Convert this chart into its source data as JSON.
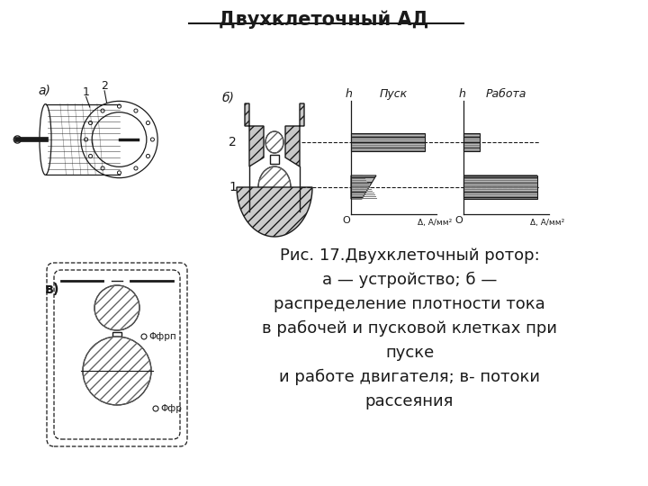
{
  "title": "Двухклеточный АД",
  "caption_line1": "Рис. 17.Двухклеточный ротор:",
  "caption_line2": "а — устройство; б —",
  "caption_line3": "распределение плотности тока",
  "caption_line4": "в рабочей и пусковой клетках при",
  "caption_line5": "пуске",
  "caption_line6": "и работе двигателя; в- потоки",
  "caption_line7": "рассеяния",
  "label_a": "а)",
  "label_b": "б)",
  "label_v": "в)",
  "label_1": "1",
  "label_2": "2",
  "label_pusk": "Пуск",
  "label_rabota": "Работа",
  "label_h": "h",
  "label_delta": "Δ, А/мм²",
  "label_O": "O",
  "label_phi_rp": "Φфрп",
  "label_phi_r": "Φфр",
  "bg_color": "#ffffff",
  "line_color": "#1a1a1a",
  "title_fontsize": 15,
  "caption_fontsize": 13
}
